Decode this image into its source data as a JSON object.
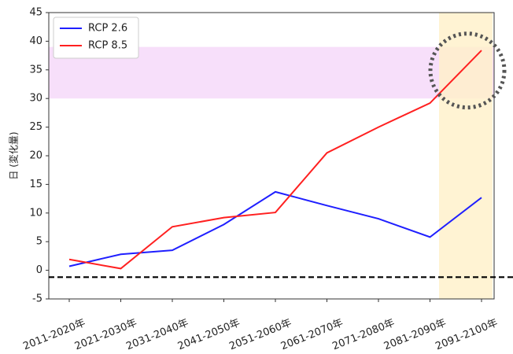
{
  "chart_data": {
    "type": "line",
    "ylabel": "日 (変化量)",
    "categories": [
      "2011-2020年",
      "2021-2030年",
      "2031-2040年",
      "2041-2050年",
      "2051-2060年",
      "2061-2070年",
      "2071-2080年",
      "2081-2090年",
      "2091-2100年"
    ],
    "series": [
      {
        "name": "RCP 2.6",
        "color": "#1f1fff",
        "values": [
          0.7,
          2.8,
          3.5,
          8,
          13.7,
          11.3,
          9,
          5.8,
          12.7
        ]
      },
      {
        "name": "RCP 8.5",
        "color": "#ff2020",
        "values": [
          1.9,
          0.3,
          7.6,
          9.2,
          10.1,
          20.5,
          25,
          29.2,
          38.4
        ]
      }
    ],
    "ylim": [
      -5,
      45
    ],
    "yticks": [
      -5,
      0,
      5,
      10,
      15,
      20,
      25,
      30,
      35,
      40,
      45
    ],
    "hband": [
      30,
      39
    ],
    "hline": -1.2,
    "legend": "upper left"
  }
}
